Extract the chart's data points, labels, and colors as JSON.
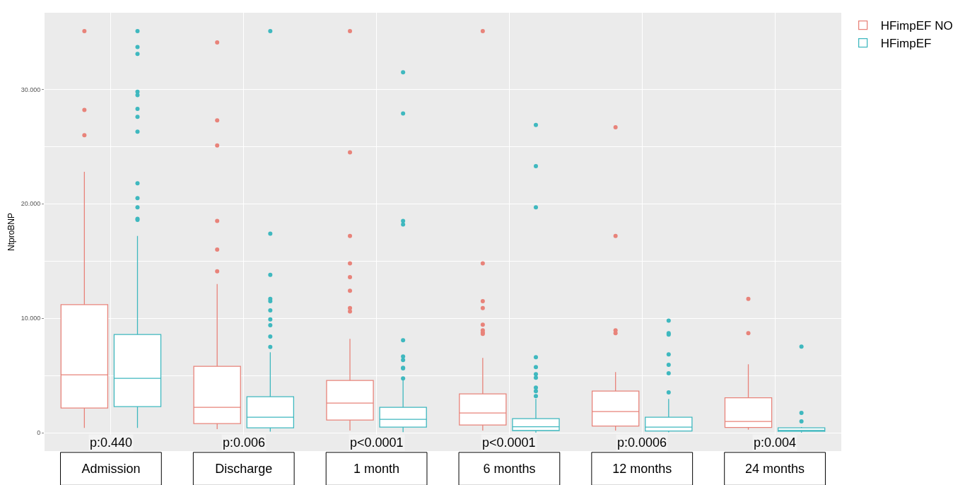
{
  "chart_data": {
    "type": "box",
    "ylabel": "NtproBNP",
    "categories": [
      "Admission",
      "Discharge",
      "1 month",
      "6 months",
      "12 months",
      "24 months"
    ],
    "annotations": [
      "p:0.440",
      "p:0.006",
      "p<0.0001",
      "p<0.0001",
      "p:0.0006",
      "p:0.004"
    ],
    "ylim": [
      -1.6,
      36.7
    ],
    "yticks": [
      0,
      {
        "value": 10,
        "label": "10.000"
      },
      {
        "value": 20,
        "label": "20.000"
      },
      {
        "value": 30,
        "label": "30.000"
      }
    ],
    "grid": true,
    "legend": "top right",
    "series": [
      {
        "name": "HFimpEF NO",
        "color": "#e8837a",
        "boxes": [
          {
            "low": 0.43,
            "q1": 2.16,
            "median": 5.06,
            "q3": 11.2,
            "high": 22.8,
            "outliers": [
              35.1,
              28.2,
              26.0
            ]
          },
          {
            "low": 0.31,
            "q1": 0.8,
            "median": 2.22,
            "q3": 5.8,
            "high": 13.0,
            "outliers": [
              34.1,
              27.3,
              25.1,
              18.5,
              16.0,
              14.1
            ]
          },
          {
            "low": 0.19,
            "q1": 1.11,
            "median": 2.59,
            "q3": 4.57,
            "high": 8.2,
            "outliers": [
              35.1,
              24.5,
              17.2,
              14.8,
              13.6,
              12.4,
              10.9,
              10.6
            ]
          },
          {
            "low": 0.19,
            "q1": 0.68,
            "median": 1.73,
            "q3": 3.4,
            "high": 6.54,
            "outliers": [
              35.1,
              14.8,
              11.5,
              10.9,
              9.44,
              8.95,
              8.77,
              8.64
            ]
          },
          {
            "low": 0.19,
            "q1": 0.59,
            "median": 1.85,
            "q3": 3.64,
            "high": 5.31,
            "outliers": [
              26.7,
              17.2,
              8.95,
              8.7
            ]
          },
          {
            "low": 0.27,
            "q1": 0.46,
            "median": 0.99,
            "q3": 3.06,
            "high": 5.99,
            "outliers": [
              11.7,
              8.7
            ]
          }
        ]
      },
      {
        "name": "HFimpEF",
        "color": "#3fb8bf",
        "boxes": [
          {
            "low": 0.43,
            "q1": 2.28,
            "median": 4.75,
            "q3": 8.58,
            "high": 17.2,
            "outliers": [
              35.1,
              33.7,
              33.1,
              29.8,
              29.5,
              28.3,
              27.6,
              26.3,
              21.8,
              20.5,
              19.7,
              18.7,
              18.6
            ]
          },
          {
            "low": 0.1,
            "q1": 0.43,
            "median": 1.36,
            "q3": 3.15,
            "high": 7.04,
            "outliers": [
              35.1,
              17.4,
              13.8,
              11.7,
              11.5,
              10.7,
              9.9,
              9.4,
              8.4,
              7.5
            ]
          },
          {
            "low": 0.06,
            "q1": 0.49,
            "median": 1.17,
            "q3": 2.22,
            "high": 4.65,
            "outliers": [
              31.5,
              27.9,
              18.5,
              18.2,
              8.09,
              6.67,
              6.36,
              5.68,
              5.62,
              4.75
            ]
          },
          {
            "low": 0,
            "q1": 0.19,
            "median": 0.52,
            "q3": 1.23,
            "high": 2.96,
            "outliers": [
              26.9,
              23.3,
              19.7,
              6.6,
              5.74,
              5.12,
              4.81,
              3.95,
              3.64,
              3.21
            ]
          },
          {
            "low": 0.03,
            "q1": 0.15,
            "median": 0.49,
            "q3": 1.36,
            "high": 2.96,
            "outliers": [
              9.8,
              8.7,
              8.58,
              6.85,
              5.93,
              5.19,
              3.52
            ]
          },
          {
            "low": 0,
            "q1": 0.12,
            "median": 0.22,
            "q3": 0.43,
            "high": 0.5,
            "outliers": [
              7.53,
              1.73,
              0.99
            ]
          }
        ]
      }
    ]
  }
}
